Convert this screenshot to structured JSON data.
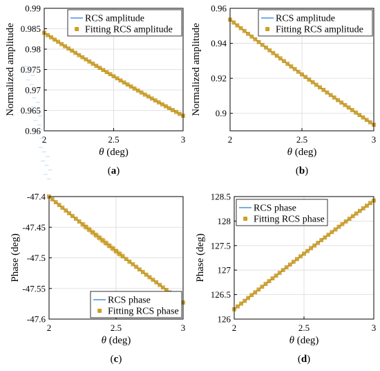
{
  "colors": {
    "line": "#4a90d9",
    "marker": "#d4a017",
    "marker_stroke": "#b07800",
    "grid": "#d9d9d9",
    "axis": "#000000",
    "band": "#a8c3ea"
  },
  "chart_data": [
    {
      "type": "line",
      "panel": "a",
      "caption_open": "(",
      "caption_letter": "a",
      "caption_close": ")",
      "xlabel_symbol": "θ",
      "xlabel_unit": " (deg)",
      "ylabel": "Normalized amplitude",
      "xlim": [
        2,
        3
      ],
      "ylim": [
        0.96,
        0.99
      ],
      "xticks": [
        2,
        2.5,
        3
      ],
      "xtick_labels": [
        "2",
        "2.5",
        "3"
      ],
      "yticks": [
        0.96,
        0.965,
        0.97,
        0.975,
        0.98,
        0.985,
        0.99
      ],
      "ytick_labels": [
        "0.96",
        "0.965",
        "0.97",
        "0.975",
        "0.98",
        "0.985",
        "0.99"
      ],
      "grid": true,
      "legend_position": "top-right",
      "legend": [
        "RCS amplitude",
        "Fitting RCS amplitude"
      ],
      "x_start": 2,
      "x_end": 3,
      "x_count": 41,
      "y_start": 0.984,
      "y_end": 0.9637,
      "curvature": 0.002,
      "series": [
        {
          "name": "RCS amplitude",
          "style": "line"
        },
        {
          "name": "Fitting RCS amplitude",
          "style": "square-markers"
        }
      ]
    },
    {
      "type": "line",
      "panel": "b",
      "caption_open": "(",
      "caption_letter": "b",
      "caption_close": ")",
      "xlabel_symbol": "θ",
      "xlabel_unit": " (deg)",
      "ylabel": "Normalized amplitude",
      "xlim": [
        2,
        3
      ],
      "ylim": [
        0.89,
        0.96
      ],
      "xticks": [
        2,
        2.5,
        3
      ],
      "xtick_labels": [
        "2",
        "2.5",
        "3"
      ],
      "yticks": [
        0.9,
        0.92,
        0.94,
        0.96
      ],
      "ytick_labels": [
        "0.9",
        "0.92",
        "0.94",
        "0.96"
      ],
      "grid": true,
      "legend_position": "top-right",
      "legend": [
        "RCS amplitude",
        "Fitting RCS amplitude"
      ],
      "x_start": 2,
      "x_end": 3,
      "x_count": 41,
      "y_start": 0.9535,
      "y_end": 0.8935,
      "curvature": 0.005,
      "series": [
        {
          "name": "RCS amplitude",
          "style": "line"
        },
        {
          "name": "Fitting RCS amplitude",
          "style": "square-markers"
        }
      ]
    },
    {
      "type": "line",
      "panel": "c",
      "caption_open": "(",
      "caption_letter": "c",
      "caption_close": ")",
      "xlabel_symbol": "θ",
      "xlabel_unit": " (deg)",
      "ylabel": "Phase (deg)",
      "xlim": [
        2,
        3
      ],
      "ylim": [
        -47.6,
        -47.4
      ],
      "xticks": [
        2,
        2.5,
        3
      ],
      "xtick_labels": [
        "2",
        "2.5",
        "3"
      ],
      "yticks": [
        -47.6,
        -47.55,
        -47.5,
        -47.45,
        -47.4
      ],
      "ytick_labels": [
        "-47.6",
        "-47.55",
        "-47.5",
        "-47.45",
        "-47.4"
      ],
      "grid": true,
      "legend_position": "bottom-right",
      "legend": [
        "RCS phase",
        "Fitting RCS phase"
      ],
      "x_start": 2,
      "x_end": 3,
      "x_count": 41,
      "y_start": -47.4,
      "y_end": -47.573,
      "curvature": 0.01,
      "series": [
        {
          "name": "RCS phase",
          "style": "line"
        },
        {
          "name": "Fitting RCS phase",
          "style": "square-markers"
        }
      ]
    },
    {
      "type": "line",
      "panel": "d",
      "caption_open": "(",
      "caption_letter": "d",
      "caption_close": ")",
      "xlabel_symbol": "θ",
      "xlabel_unit": " (deg)",
      "ylabel": "Phase (deg)",
      "xlim": [
        2,
        3
      ],
      "ylim": [
        126,
        128.5
      ],
      "xticks": [
        2,
        2.5,
        3
      ],
      "xtick_labels": [
        "2",
        "2.5",
        "3"
      ],
      "yticks": [
        126,
        126.5,
        127,
        127.5,
        128,
        128.5
      ],
      "ytick_labels": [
        "126",
        "126.5",
        "127",
        "127.5",
        "128",
        "128.5"
      ],
      "grid": true,
      "legend_position": "top-left",
      "legend": [
        "RCS phase",
        "Fitting RCS phase"
      ],
      "x_start": 2,
      "x_end": 3,
      "x_count": 41,
      "y_start": 126.2,
      "y_end": 128.42,
      "curvature": -0.1,
      "series": [
        {
          "name": "RCS phase",
          "style": "line"
        },
        {
          "name": "Fitting RCS phase",
          "style": "square-markers"
        }
      ]
    }
  ]
}
